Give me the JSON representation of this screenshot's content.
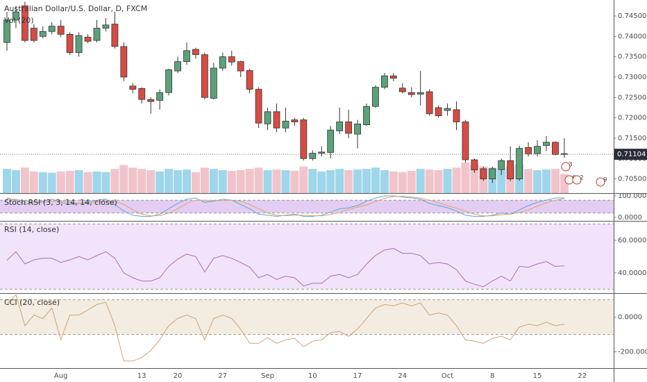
{
  "chart_data": [
    {
      "type": "candlestick",
      "title": "Australian Dollar/U.S. Dollar, D, FXCM",
      "volume_label": "Vol (20)",
      "categories": [
        null,
        null,
        null,
        null,
        null,
        null,
        "Aug",
        null,
        null,
        null,
        null,
        null,
        null,
        null,
        null,
        "13",
        null,
        null,
        null,
        "20",
        null,
        null,
        null,
        null,
        "27",
        null,
        null,
        null,
        null,
        "Sep",
        null,
        null,
        null,
        null,
        "10",
        null,
        null,
        null,
        null,
        "17",
        null,
        null,
        null,
        null,
        "24",
        null,
        null,
        null,
        null,
        "Oct",
        null,
        null,
        null,
        null,
        "8",
        null,
        null,
        null,
        null,
        "15",
        null,
        null,
        null,
        null,
        "22"
      ],
      "open": [
        0.7385,
        0.744,
        0.7475,
        0.742,
        0.74,
        0.7412,
        0.7425,
        0.7405,
        0.736,
        0.7398,
        0.739,
        0.742,
        0.743,
        0.7375,
        0.7278,
        0.7272,
        0.7245,
        0.7243,
        0.7262,
        0.7315,
        0.7338,
        0.7368,
        0.7355,
        0.7248,
        0.7322,
        0.735,
        0.7338,
        0.7316,
        0.727,
        0.7185,
        0.7215,
        0.7175,
        0.7195,
        0.7195,
        0.71,
        0.7113,
        0.7115,
        0.7168,
        0.719,
        0.716,
        0.7183,
        0.7228,
        0.7275,
        0.7303,
        0.7273,
        0.7262,
        0.7258,
        0.7264,
        0.7225,
        0.7218,
        0.722,
        0.719,
        0.7097,
        0.7075,
        0.705,
        0.7073,
        0.7095,
        0.705,
        0.7127,
        0.7112,
        0.7132,
        0.714,
        0.7112,
        null,
        null
      ],
      "high": [
        0.746,
        0.7475,
        0.7485,
        0.743,
        0.7425,
        0.7435,
        0.744,
        0.741,
        0.741,
        0.7405,
        0.744,
        0.7445,
        0.746,
        0.7385,
        0.7285,
        0.7275,
        0.725,
        0.727,
        0.732,
        0.735,
        0.7385,
        0.7372,
        0.736,
        0.7335,
        0.736,
        0.7365,
        0.734,
        0.732,
        0.7275,
        0.7225,
        0.7235,
        0.7225,
        0.72,
        0.72,
        0.712,
        0.713,
        0.718,
        0.7225,
        0.722,
        0.7195,
        0.7235,
        0.728,
        0.731,
        0.731,
        0.7285,
        0.7275,
        0.7315,
        0.727,
        0.723,
        0.7235,
        0.724,
        0.7195,
        0.71,
        0.708,
        0.708,
        0.71,
        0.713,
        0.7132,
        0.714,
        0.7145,
        0.7155,
        0.7142,
        0.715,
        null,
        null
      ],
      "low": [
        0.7365,
        0.742,
        0.7385,
        0.7385,
        0.7395,
        0.7405,
        0.7398,
        0.7355,
        0.735,
        0.7383,
        0.7385,
        0.7412,
        0.737,
        0.729,
        0.726,
        0.7235,
        0.721,
        0.722,
        0.7255,
        0.731,
        0.733,
        0.7345,
        0.7245,
        0.7245,
        0.7315,
        0.7328,
        0.73,
        0.726,
        0.7175,
        0.717,
        0.7165,
        0.7165,
        0.718,
        0.7095,
        0.7095,
        0.7105,
        0.71,
        0.716,
        0.715,
        0.7125,
        0.718,
        0.7225,
        0.727,
        0.729,
        0.726,
        0.725,
        0.723,
        0.7205,
        0.72,
        0.7205,
        0.717,
        0.709,
        0.7065,
        0.7045,
        0.704,
        0.706,
        0.7045,
        0.7045,
        0.7105,
        0.7105,
        0.7118,
        0.7108,
        0.7102,
        null,
        null
      ],
      "close": [
        0.744,
        0.746,
        0.739,
        0.739,
        0.7412,
        0.7425,
        0.7405,
        0.736,
        0.7402,
        0.7388,
        0.742,
        0.7428,
        0.7375,
        0.73,
        0.727,
        0.7245,
        0.724,
        0.7262,
        0.7318,
        0.7338,
        0.7365,
        0.7355,
        0.725,
        0.7322,
        0.735,
        0.7337,
        0.7315,
        0.727,
        0.7187,
        0.7215,
        0.7175,
        0.7192,
        0.719,
        0.71,
        0.7113,
        0.7116,
        0.717,
        0.719,
        0.7162,
        0.7185,
        0.7228,
        0.7275,
        0.7303,
        0.7297,
        0.7264,
        0.7257,
        0.7262,
        0.721,
        0.7205,
        0.7223,
        0.719,
        0.7097,
        0.7072,
        0.705,
        0.7075,
        0.7095,
        0.705,
        0.7125,
        0.7112,
        0.713,
        0.714,
        0.711,
        0.71104,
        null,
        null
      ],
      "volume": [
        38,
        36,
        40,
        34,
        33,
        32,
        34,
        35,
        36,
        33,
        34,
        33,
        38,
        44,
        40,
        38,
        36,
        34,
        38,
        36,
        37,
        33,
        40,
        38,
        36,
        35,
        36,
        38,
        40,
        36,
        37,
        36,
        35,
        42,
        38,
        34,
        36,
        38,
        36,
        37,
        38,
        40,
        36,
        34,
        33,
        35,
        38,
        37,
        36,
        38,
        40,
        48,
        44,
        42,
        40,
        38,
        42,
        45,
        38,
        36,
        37,
        38,
        30,
        null,
        null
      ],
      "up_color": "#5aa27a",
      "down_color": "#d64c44",
      "volume_colors": [
        "#9fd6ea",
        "#f1c4cb"
      ],
      "ylim": [
        0.70152,
        0.74892
      ],
      "yticks": [
        {
          "value": 0.705,
          "label": "0.70500"
        },
        {
          "value": 0.71,
          "label": "0.71000"
        },
        {
          "value": 0.715,
          "label": "0.71500"
        },
        {
          "value": 0.72,
          "label": "0.72000"
        },
        {
          "value": 0.725,
          "label": "0.72500"
        },
        {
          "value": 0.73,
          "label": "0.73000"
        },
        {
          "value": 0.735,
          "label": "0.73500"
        },
        {
          "value": 0.74,
          "label": "0.74000"
        },
        {
          "value": 0.745,
          "label": "0.74500"
        }
      ],
      "last_price": {
        "value": 0.71104,
        "label": "0.71104"
      },
      "events": [
        "3",
        "6",
        "2",
        "9"
      ]
    },
    {
      "type": "line",
      "title": "Stoch RSI (3, 3, 14, 14, close)",
      "ylim": [
        -12.9,
        109.7
      ],
      "bands": [
        20,
        80
      ],
      "band_color": "#e3cdf3",
      "yticks": [
        {
          "value": 100,
          "label": "100.0000"
        },
        {
          "value": 0,
          "label": "0.0000"
        }
      ],
      "series": [
        {
          "color": "#5ba8d6",
          "values": [
            90,
            80,
            60,
            70,
            75,
            85,
            70,
            60,
            65,
            70,
            80,
            85,
            60,
            30,
            10,
            5,
            5,
            15,
            40,
            65,
            85,
            90,
            70,
            75,
            85,
            80,
            60,
            40,
            15,
            10,
            5,
            10,
            15,
            5,
            5,
            10,
            25,
            40,
            45,
            55,
            75,
            90,
            100,
            100,
            95,
            90,
            85,
            65,
            55,
            45,
            30,
            10,
            5,
            5,
            10,
            20,
            15,
            35,
            55,
            70,
            80,
            90,
            90,
            null,
            null
          ]
        },
        {
          "color": "#e0a36a",
          "values": [
            85,
            85,
            75,
            70,
            70,
            75,
            75,
            70,
            65,
            65,
            70,
            75,
            75,
            60,
            35,
            15,
            7,
            8,
            20,
            40,
            65,
            80,
            80,
            78,
            78,
            80,
            75,
            60,
            40,
            20,
            10,
            8,
            10,
            10,
            8,
            7,
            13,
            25,
            37,
            47,
            58,
            73,
            88,
            97,
            98,
            95,
            90,
            80,
            68,
            55,
            43,
            28,
            15,
            7,
            7,
            12,
            15,
            23,
            35,
            53,
            68,
            80,
            87,
            null,
            null
          ]
        }
      ]
    },
    {
      "type": "line",
      "title": "RSI (14, close)",
      "ylim": [
        27.6,
        71.9
      ],
      "bands": [
        30,
        70
      ],
      "band_color": "#f1e4fa",
      "yticks": [
        {
          "value": 60,
          "label": "60.0000"
        },
        {
          "value": 40,
          "label": "40.0000"
        }
      ],
      "series": [
        {
          "color": "#b06ab3",
          "values": [
            47.7,
            53,
            45.5,
            48,
            49,
            49,
            46.4,
            48,
            50,
            48,
            50.6,
            53,
            49,
            40,
            37,
            35,
            35,
            37,
            44,
            48.5,
            51.5,
            50,
            40.5,
            49,
            50.6,
            49,
            46.4,
            43.5,
            37,
            39,
            36,
            38,
            37,
            32,
            33.6,
            33.6,
            38,
            39,
            37,
            39,
            45.5,
            50.6,
            54,
            55,
            52,
            52,
            50.6,
            45.5,
            46.4,
            45.5,
            42,
            35,
            33,
            31.5,
            35,
            38,
            35,
            44,
            43.5,
            45.5,
            47,
            44,
            44.3,
            null,
            null
          ]
        }
      ]
    },
    {
      "type": "line",
      "title": "CCI (20, close)",
      "ylim": [
        -293.9,
        134.7
      ],
      "bands": [
        -100,
        100
      ],
      "band_color": "#f3ece0",
      "yticks": [
        {
          "value": 0,
          "label": "0.0000"
        },
        {
          "value": -200,
          "label": "-200.0000"
        }
      ],
      "series": [
        {
          "color": "#c9a57c",
          "values": [
            73,
            130,
            -49,
            12,
            -8,
            53,
            -130,
            12,
            12,
            41,
            73,
            86,
            -49,
            -253,
            -253,
            -233,
            -192,
            -131,
            -49,
            -8,
            12,
            -8,
            -131,
            -8,
            12,
            -8,
            -69,
            -151,
            -151,
            -118,
            -151,
            -131,
            -122,
            -171,
            -139,
            -131,
            -90,
            -82,
            -110,
            -69,
            -8,
            53,
            73,
            65,
            82,
            65,
            82,
            12,
            24,
            12,
            -49,
            -131,
            -139,
            -151,
            -122,
            -110,
            -131,
            -57,
            -41,
            -49,
            -29,
            -49,
            -41,
            null,
            null
          ]
        }
      ]
    }
  ]
}
